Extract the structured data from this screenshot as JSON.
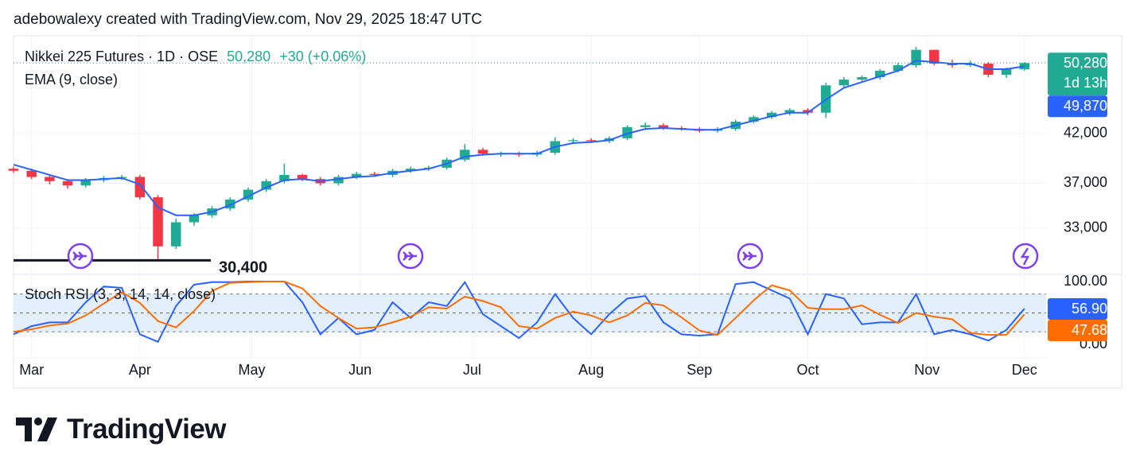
{
  "header": "adebowalexy created with TradingView.com, Nov 29, 2025 18:47 UTC",
  "footer": {
    "brand": "TradingView"
  },
  "chart_data": [
    {
      "type": "candlestick",
      "title": "Nikkei 225 Futures · 1D · OSE",
      "legend_price": "50,280",
      "legend_change": "+30 (+0.06%)",
      "x": [
        0,
        5,
        10,
        15,
        20,
        25,
        30,
        35,
        40,
        45,
        50,
        55,
        60,
        65,
        70,
        75,
        80,
        85,
        90,
        95,
        100,
        105,
        110,
        115,
        120,
        125,
        130,
        135,
        140,
        145,
        150,
        155,
        160,
        165,
        170,
        175,
        180,
        185,
        190,
        195,
        200,
        205,
        210,
        215,
        220,
        225,
        230,
        235,
        240,
        245,
        250,
        255,
        260,
        265,
        270,
        275,
        280
      ],
      "xlim": [
        0,
        286
      ],
      "log_scale": true,
      "ylim": [
        29330,
        53900
      ],
      "yticks": [
        {
          "value": 33000,
          "label": "33,000"
        },
        {
          "value": 37000,
          "label": "37,000"
        },
        {
          "value": 42000,
          "label": "42,000"
        }
      ],
      "grid": true,
      "up_color": "#22ab94",
      "down_color": "#f23645",
      "open": [
        38400,
        38200,
        37600,
        37200,
        36800,
        37300,
        37500,
        37600,
        35700,
        31500,
        33500,
        34100,
        34700,
        35500,
        36400,
        37200,
        37800,
        37400,
        37000,
        37600,
        37900,
        37800,
        38200,
        38400,
        38500,
        39300,
        40300,
        39900,
        39900,
        39800,
        40000,
        41200,
        41300,
        41200,
        41500,
        42700,
        42900,
        42600,
        42500,
        42300,
        42500,
        43300,
        43800,
        44300,
        44600,
        44300,
        47500,
        48200,
        48500,
        49300,
        50000,
        52000,
        50200,
        50000,
        50200,
        48800,
        49500
      ],
      "high": [
        38600,
        38400,
        37800,
        37400,
        37500,
        37700,
        37800,
        37800,
        35900,
        33800,
        34300,
        34900,
        35700,
        36600,
        37400,
        38900,
        37900,
        37600,
        37800,
        38100,
        38100,
        38400,
        38600,
        38700,
        39500,
        40900,
        40500,
        40100,
        40100,
        40200,
        41600,
        41500,
        41500,
        41700,
        42900,
        43200,
        43100,
        42800,
        42700,
        42700,
        43500,
        44000,
        44500,
        44800,
        44800,
        47800,
        48500,
        48700,
        49500,
        50300,
        52400,
        52000,
        50700,
        50600,
        50400,
        49700,
        50400
      ],
      "low": [
        38000,
        37400,
        36900,
        36500,
        36600,
        37100,
        37300,
        35500,
        30400,
        31300,
        33200,
        33900,
        34500,
        35300,
        36200,
        37000,
        37200,
        36800,
        36800,
        37400,
        37600,
        37600,
        38000,
        38200,
        38300,
        39100,
        39700,
        39600,
        39600,
        39600,
        39800,
        40900,
        41000,
        41000,
        41300,
        42400,
        42400,
        42300,
        42100,
        42100,
        42300,
        43100,
        43600,
        44000,
        44000,
        43700,
        47200,
        47900,
        48200,
        49100,
        49700,
        50000,
        49700,
        49800,
        48500,
        48400,
        49300
      ],
      "close": [
        38200,
        37600,
        37200,
        36800,
        37300,
        37500,
        37600,
        35700,
        31500,
        33500,
        34100,
        34700,
        35500,
        36400,
        37200,
        37800,
        37400,
        37000,
        37600,
        37900,
        37800,
        38200,
        38400,
        38500,
        39300,
        40300,
        39900,
        39900,
        39800,
        40000,
        41200,
        41300,
        41200,
        41500,
        42700,
        42900,
        42600,
        42500,
        42300,
        42500,
        43300,
        43800,
        44300,
        44600,
        44300,
        47500,
        48200,
        48500,
        49300,
        50000,
        52000,
        50200,
        50000,
        50200,
        48800,
        49500,
        50280
      ],
      "series": [
        {
          "name": "EMA (9, close)",
          "color": "#2962ff",
          "values": [
            38800,
            38300,
            37800,
            37300,
            37300,
            37400,
            37500,
            36900,
            34800,
            34100,
            34100,
            34400,
            35000,
            35800,
            36600,
            37300,
            37400,
            37200,
            37400,
            37600,
            37700,
            38000,
            38200,
            38400,
            38900,
            39600,
            39800,
            39900,
            39900,
            39900,
            40600,
            41000,
            41100,
            41300,
            42000,
            42500,
            42600,
            42500,
            42400,
            42400,
            42900,
            43400,
            43900,
            44300,
            44300,
            45800,
            47200,
            47900,
            48600,
            49300,
            50600,
            50400,
            50200,
            50200,
            49500,
            49500,
            49870
          ]
        }
      ],
      "price_tags": [
        {
          "value": 50280,
          "label": "50,280",
          "sub": "1d 13h",
          "color": "#22ab94"
        },
        {
          "value": 49870,
          "label": "49,870",
          "color": "#2962ff"
        }
      ],
      "low_label": {
        "value": 30400,
        "label": "30,400"
      }
    },
    {
      "type": "line",
      "title": "Stoch RSI (3, 3, 14, 14, close)",
      "x": [
        0,
        5,
        10,
        15,
        20,
        25,
        30,
        35,
        40,
        45,
        50,
        55,
        60,
        65,
        70,
        75,
        80,
        85,
        90,
        95,
        100,
        105,
        110,
        115,
        120,
        125,
        130,
        135,
        140,
        145,
        150,
        155,
        160,
        165,
        170,
        175,
        180,
        185,
        190,
        195,
        200,
        205,
        210,
        215,
        220,
        225,
        230,
        235,
        240,
        245,
        250,
        255,
        260,
        265,
        270,
        275,
        280
      ],
      "xlim": [
        0,
        286
      ],
      "xticks": [
        {
          "value": 5,
          "label": "Mar"
        },
        {
          "value": 35,
          "label": "Apr"
        },
        {
          "value": 66,
          "label": "May"
        },
        {
          "value": 96,
          "label": "Jun"
        },
        {
          "value": 127,
          "label": "Jul"
        },
        {
          "value": 160,
          "label": "Aug"
        },
        {
          "value": 190,
          "label": "Sep"
        },
        {
          "value": 220,
          "label": "Oct"
        },
        {
          "value": 253,
          "label": "Nov"
        },
        {
          "value": 280,
          "label": "Dec"
        }
      ],
      "ylim": [
        -21.5,
        111.4
      ],
      "yticks": [
        {
          "value": 0,
          "label": "0.00"
        },
        {
          "value": 100,
          "label": "100.00"
        }
      ],
      "bands": [
        20,
        50,
        80
      ],
      "band_color": "#e3effd",
      "series": [
        {
          "color": "#2962ff",
          "values": [
            16,
            29,
            35,
            35,
            67,
            92,
            90,
            16,
            4,
            61,
            95,
            99,
            99,
            100,
            100,
            100,
            67,
            16,
            42,
            16,
            23,
            67,
            42,
            67,
            61,
            99,
            48,
            29,
            10,
            35,
            80,
            42,
            16,
            48,
            73,
            77,
            35,
            16,
            14,
            16,
            96,
            99,
            86,
            73,
            16,
            80,
            73,
            32,
            35,
            35,
            80,
            16,
            23,
            16,
            6,
            23,
            56.9
          ]
        },
        {
          "color": "#ff6d00",
          "values": [
            20,
            24,
            30,
            33,
            46,
            65,
            83,
            66,
            37,
            27,
            53,
            85,
            98,
            99,
            100,
            100,
            89,
            61,
            42,
            25,
            27,
            35,
            44,
            59,
            57,
            76,
            69,
            59,
            29,
            25,
            42,
            52,
            46,
            35,
            46,
            66,
            62,
            43,
            22,
            15,
            42,
            70,
            94,
            86,
            58,
            56,
            56,
            62,
            47,
            34,
            50,
            44,
            40,
            18,
            15,
            15,
            47.68
          ]
        }
      ],
      "value_tags": [
        {
          "value": 56.9,
          "label": "56.90",
          "color": "#2962ff"
        },
        {
          "value": 47.68,
          "label": "47.68",
          "color": "#ff6d00"
        }
      ]
    }
  ]
}
